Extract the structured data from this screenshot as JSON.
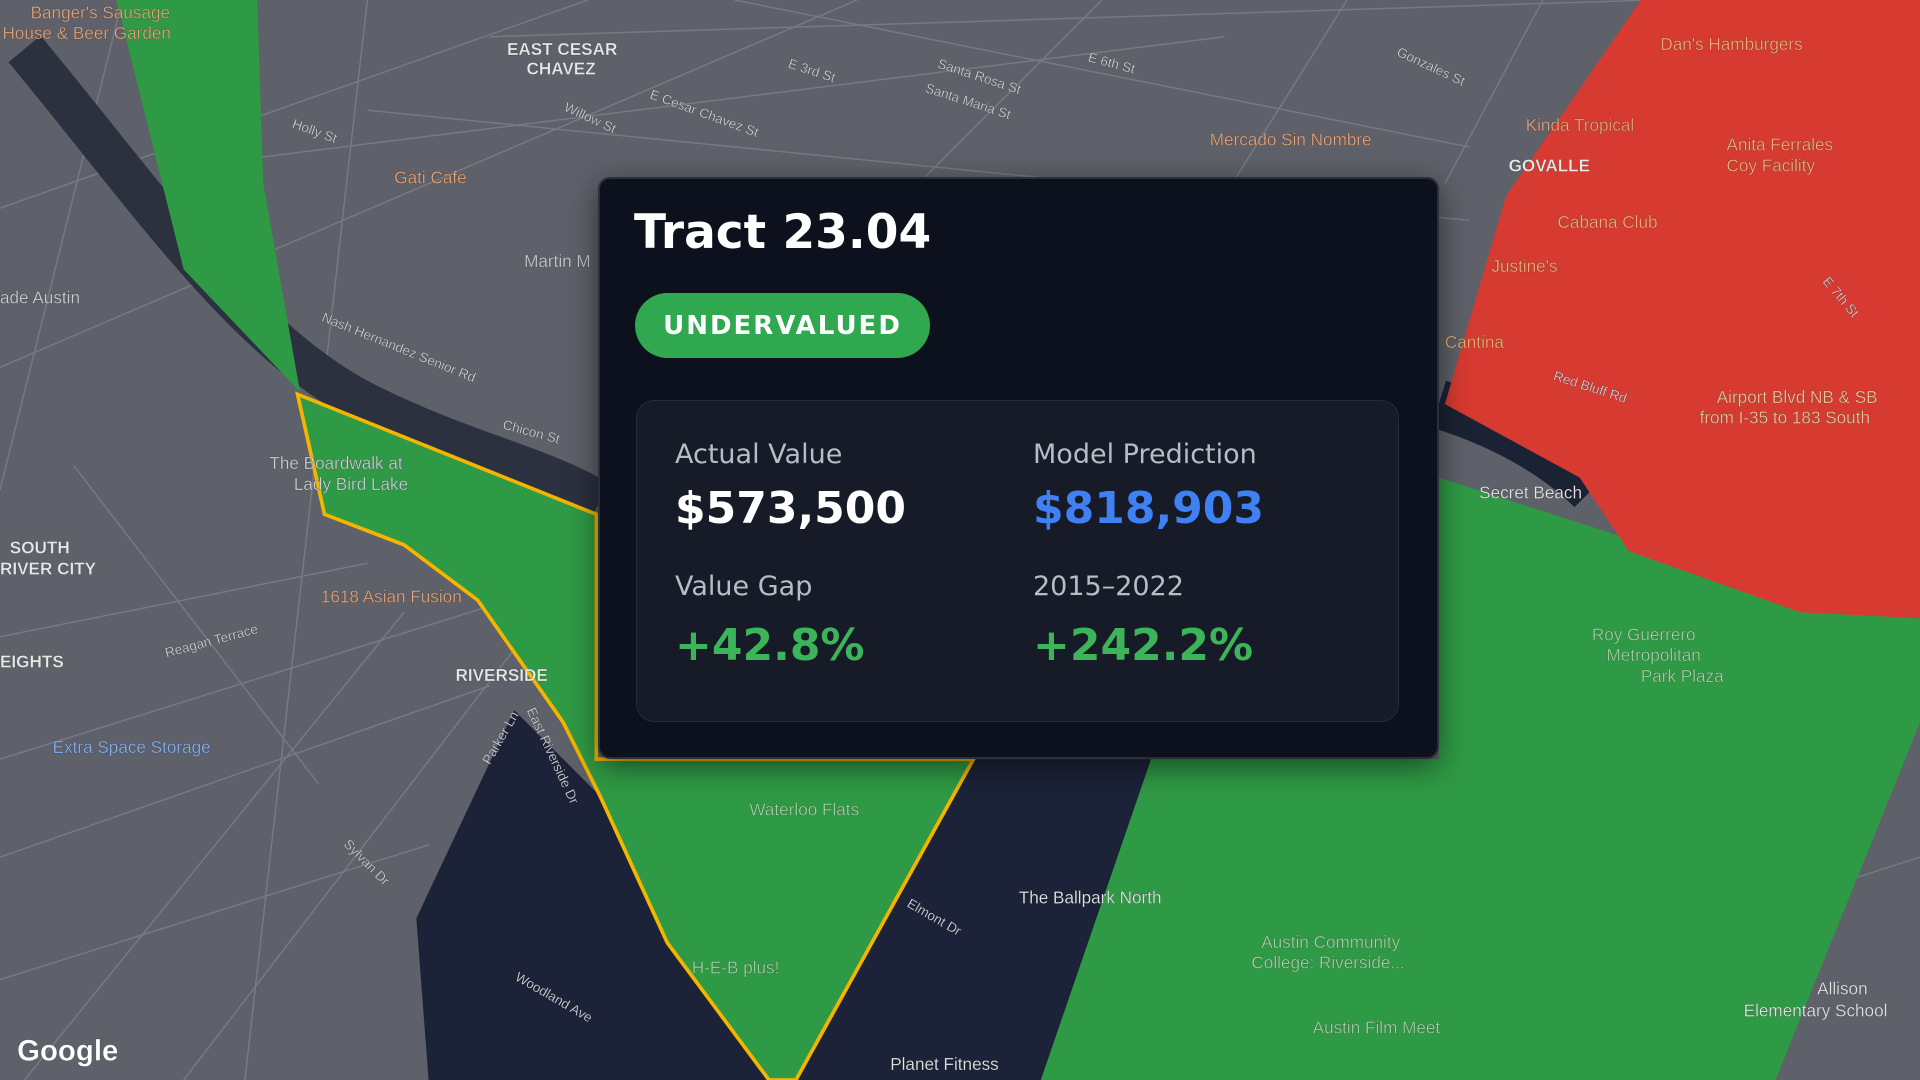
{
  "popup": {
    "title": "Tract 23.04",
    "status": "UNDERVALUED",
    "metrics": [
      {
        "label": "Actual Value",
        "value": "$573,500"
      },
      {
        "label": "Model Prediction",
        "value": "$818,903"
      },
      {
        "label": "Value Gap",
        "value": "+42.8%"
      },
      {
        "label": "2015–2022",
        "value": "+242.2%"
      }
    ]
  },
  "map": {
    "places": [
      "Banger's Sausage",
      "House & Beer Garden",
      "EAST CESAR",
      "CHAVEZ",
      "Gati Cafe",
      "Martin M",
      "ade Austin",
      "The Boardwalk at",
      "Lady Bird Lake",
      "SOUTH",
      "RIVER CITY",
      "1618 Asian Fusion",
      "EIGHTS",
      "RIVERSIDE",
      "Extra Space Storage",
      "Mercado Sin Nombre",
      "Kinda Tropical",
      "GOVALLE",
      "Dan's Hamburgers",
      "Anita Ferrales",
      "Coy Facility",
      "Cabana Club",
      "Justine's",
      "Cantina",
      "Airport Blvd NB & SB",
      "from I-35 to 183 South",
      "Secret Beach",
      "Roy Guerrero",
      "Metropolitan",
      "Park Plaza",
      "Waterloo Flats",
      "The Ballpark North",
      "H-E-B plus!",
      "Austin Community",
      "College: Riverside...",
      "Austin Film Meet",
      "Planet Fitness",
      "Allison",
      "Elementary School"
    ],
    "streets": [
      "E Cesar Chavez St",
      "Willow St",
      "Holly St",
      "E 3rd St",
      "E 6th St",
      "Santa Rosa St",
      "Santa Maria St",
      "Nash Hernandez Senior Rd",
      "Chicon St",
      "Reagan Terrace",
      "Woodland Ave",
      "Elmont Dr",
      "Red Bluff Rd",
      "E 7th St",
      "Gonzales St",
      "Sylvan Dr",
      "Parker Ln",
      "East Riverside Dr"
    ],
    "attribution": "Google"
  }
}
